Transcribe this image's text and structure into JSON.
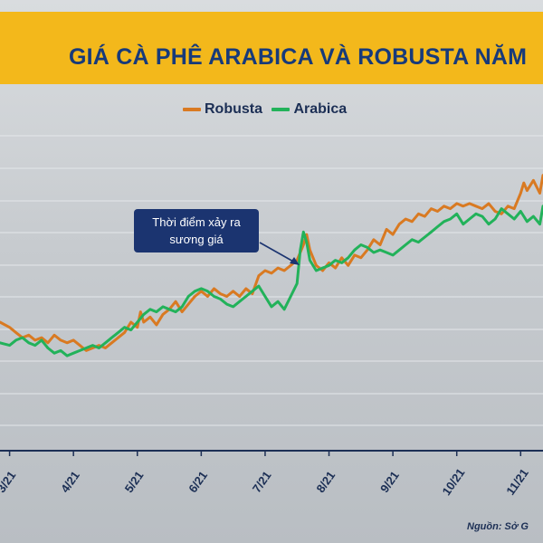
{
  "header": {
    "title": "GIÁ CÀ PHÊ ARABICA VÀ ROBUSTA NĂM"
  },
  "source": "Nguồn: Sở G",
  "annotation": {
    "line1": "Thời điểm xảy ra",
    "line2": "sương giá"
  },
  "colors": {
    "header_bg": "#f3b81b",
    "title": "#173a7a",
    "robusta": "#d97a22",
    "arabica": "#22b25a",
    "axis": "#1c2f55",
    "annotation_bg": "#1b3470"
  },
  "chart_data": {
    "type": "line",
    "title": "GIÁ CÀ PHÊ ARABICA VÀ ROBUSTA NĂM",
    "xlabel": "",
    "ylabel": "",
    "grid": true,
    "legend_position": "top-center",
    "x_ticks": [
      "3/21",
      "4/21",
      "5/21",
      "6/21",
      "7/21",
      "8/21",
      "9/21",
      "10/21",
      "11/21"
    ],
    "x_range": [
      2.85,
      11.35
    ],
    "y_range": [
      0,
      100
    ],
    "series": [
      {
        "name": "Robusta",
        "color": "#d97a22",
        "points": [
          [
            2.85,
            40
          ],
          [
            3.0,
            38
          ],
          [
            3.1,
            36
          ],
          [
            3.2,
            34
          ],
          [
            3.3,
            35
          ],
          [
            3.4,
            33
          ],
          [
            3.5,
            34
          ],
          [
            3.6,
            32
          ],
          [
            3.7,
            35
          ],
          [
            3.8,
            33
          ],
          [
            3.9,
            32
          ],
          [
            4.0,
            33
          ],
          [
            4.1,
            31
          ],
          [
            4.2,
            29
          ],
          [
            4.3,
            30
          ],
          [
            4.4,
            31
          ],
          [
            4.5,
            30
          ],
          [
            4.6,
            32
          ],
          [
            4.7,
            34
          ],
          [
            4.8,
            36
          ],
          [
            4.9,
            40
          ],
          [
            5.0,
            38
          ],
          [
            5.05,
            44
          ],
          [
            5.1,
            40
          ],
          [
            5.2,
            42
          ],
          [
            5.3,
            39
          ],
          [
            5.4,
            43
          ],
          [
            5.5,
            45
          ],
          [
            5.6,
            48
          ],
          [
            5.7,
            44
          ],
          [
            5.8,
            47
          ],
          [
            5.9,
            50
          ],
          [
            6.0,
            52
          ],
          [
            6.1,
            50
          ],
          [
            6.2,
            53
          ],
          [
            6.3,
            51
          ],
          [
            6.4,
            50
          ],
          [
            6.5,
            52
          ],
          [
            6.6,
            50
          ],
          [
            6.7,
            53
          ],
          [
            6.8,
            51
          ],
          [
            6.9,
            58
          ],
          [
            7.0,
            60
          ],
          [
            7.1,
            59
          ],
          [
            7.2,
            61
          ],
          [
            7.3,
            60
          ],
          [
            7.4,
            62
          ],
          [
            7.5,
            64
          ],
          [
            7.6,
            70
          ],
          [
            7.65,
            74
          ],
          [
            7.7,
            68
          ],
          [
            7.8,
            62
          ],
          [
            7.9,
            60
          ],
          [
            8.0,
            63
          ],
          [
            8.1,
            61
          ],
          [
            8.2,
            65
          ],
          [
            8.3,
            62
          ],
          [
            8.4,
            66
          ],
          [
            8.5,
            65
          ],
          [
            8.6,
            68
          ],
          [
            8.7,
            72
          ],
          [
            8.8,
            70
          ],
          [
            8.9,
            76
          ],
          [
            9.0,
            74
          ],
          [
            9.1,
            78
          ],
          [
            9.2,
            80
          ],
          [
            9.3,
            79
          ],
          [
            9.4,
            82
          ],
          [
            9.5,
            81
          ],
          [
            9.6,
            84
          ],
          [
            9.7,
            83
          ],
          [
            9.8,
            85
          ],
          [
            9.9,
            84
          ],
          [
            10.0,
            86
          ],
          [
            10.1,
            85
          ],
          [
            10.2,
            86
          ],
          [
            10.3,
            85
          ],
          [
            10.4,
            84
          ],
          [
            10.5,
            86
          ],
          [
            10.6,
            83
          ],
          [
            10.7,
            82
          ],
          [
            10.8,
            85
          ],
          [
            10.9,
            84
          ],
          [
            11.0,
            90
          ],
          [
            11.05,
            94
          ],
          [
            11.1,
            91
          ],
          [
            11.2,
            95
          ],
          [
            11.3,
            90
          ],
          [
            11.35,
            97
          ]
        ]
      },
      {
        "name": "Arabica",
        "color": "#22b25a",
        "points": [
          [
            2.85,
            32
          ],
          [
            3.0,
            31
          ],
          [
            3.1,
            33
          ],
          [
            3.2,
            34
          ],
          [
            3.3,
            32
          ],
          [
            3.4,
            31
          ],
          [
            3.5,
            33
          ],
          [
            3.6,
            30
          ],
          [
            3.7,
            28
          ],
          [
            3.8,
            29
          ],
          [
            3.9,
            27
          ],
          [
            4.0,
            28
          ],
          [
            4.1,
            29
          ],
          [
            4.2,
            30
          ],
          [
            4.3,
            31
          ],
          [
            4.4,
            30
          ],
          [
            4.5,
            32
          ],
          [
            4.6,
            34
          ],
          [
            4.7,
            36
          ],
          [
            4.8,
            38
          ],
          [
            4.9,
            37
          ],
          [
            5.0,
            40
          ],
          [
            5.1,
            43
          ],
          [
            5.2,
            45
          ],
          [
            5.3,
            44
          ],
          [
            5.4,
            46
          ],
          [
            5.5,
            45
          ],
          [
            5.6,
            44
          ],
          [
            5.7,
            46
          ],
          [
            5.8,
            50
          ],
          [
            5.9,
            52
          ],
          [
            6.0,
            53
          ],
          [
            6.1,
            52
          ],
          [
            6.2,
            50
          ],
          [
            6.3,
            49
          ],
          [
            6.4,
            47
          ],
          [
            6.5,
            46
          ],
          [
            6.6,
            48
          ],
          [
            6.7,
            50
          ],
          [
            6.8,
            52
          ],
          [
            6.9,
            54
          ],
          [
            7.0,
            50
          ],
          [
            7.1,
            46
          ],
          [
            7.2,
            48
          ],
          [
            7.3,
            45
          ],
          [
            7.4,
            50
          ],
          [
            7.5,
            55
          ],
          [
            7.55,
            68
          ],
          [
            7.6,
            75
          ],
          [
            7.65,
            71
          ],
          [
            7.7,
            64
          ],
          [
            7.8,
            60
          ],
          [
            7.9,
            61
          ],
          [
            8.0,
            62
          ],
          [
            8.1,
            64
          ],
          [
            8.2,
            63
          ],
          [
            8.3,
            65
          ],
          [
            8.4,
            68
          ],
          [
            8.5,
            70
          ],
          [
            8.6,
            69
          ],
          [
            8.7,
            67
          ],
          [
            8.8,
            68
          ],
          [
            8.9,
            67
          ],
          [
            9.0,
            66
          ],
          [
            9.1,
            68
          ],
          [
            9.2,
            70
          ],
          [
            9.3,
            72
          ],
          [
            9.4,
            71
          ],
          [
            9.5,
            73
          ],
          [
            9.6,
            75
          ],
          [
            9.7,
            77
          ],
          [
            9.8,
            79
          ],
          [
            9.9,
            80
          ],
          [
            10.0,
            82
          ],
          [
            10.1,
            78
          ],
          [
            10.2,
            80
          ],
          [
            10.3,
            82
          ],
          [
            10.4,
            81
          ],
          [
            10.5,
            78
          ],
          [
            10.6,
            80
          ],
          [
            10.7,
            84
          ],
          [
            10.8,
            82
          ],
          [
            10.9,
            80
          ],
          [
            11.0,
            83
          ],
          [
            11.1,
            79
          ],
          [
            11.2,
            81
          ],
          [
            11.3,
            78
          ],
          [
            11.35,
            85
          ]
        ]
      }
    ]
  }
}
